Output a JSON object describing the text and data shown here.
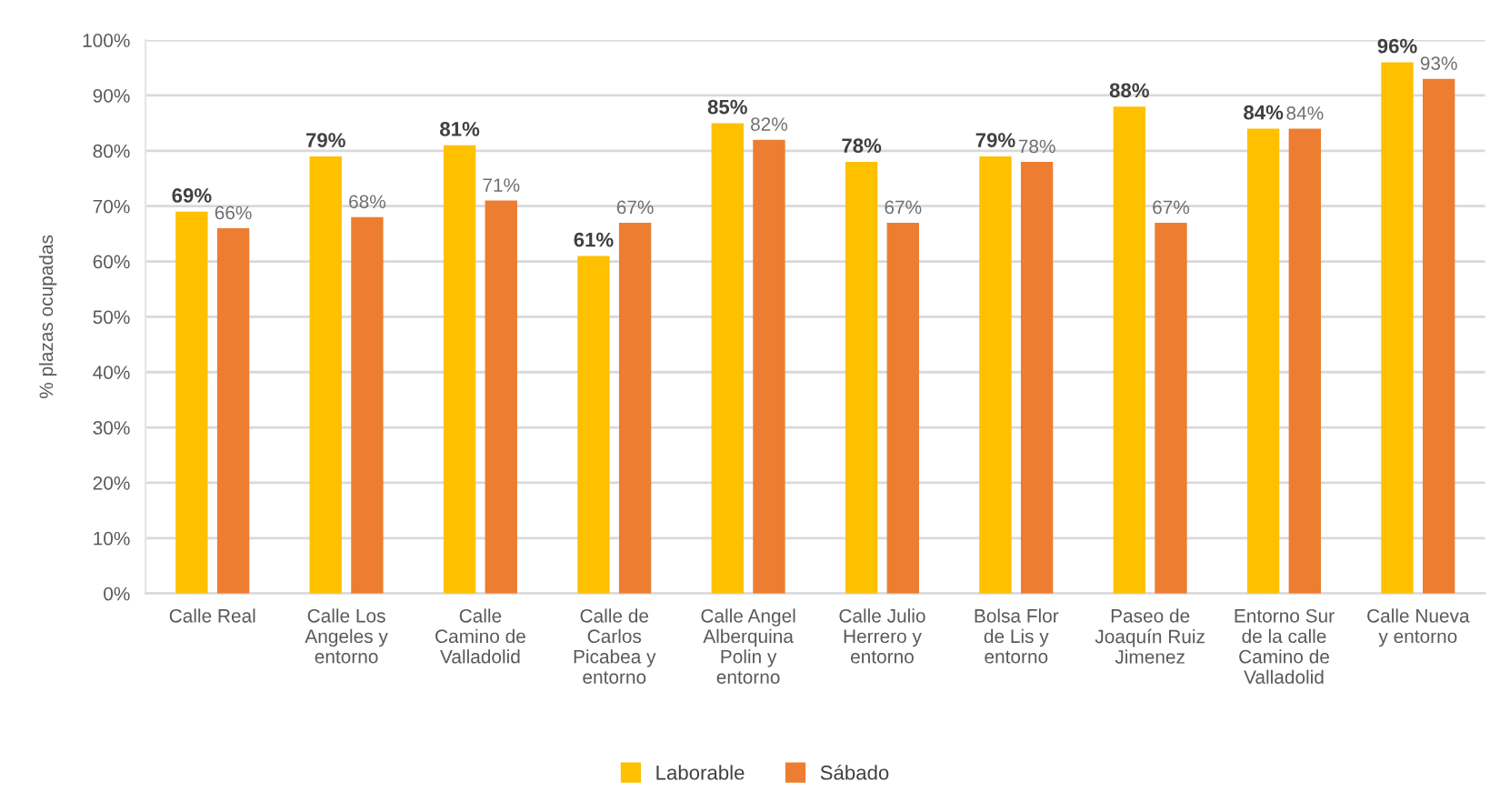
{
  "chart_data": {
    "type": "bar",
    "ylabel": "% plazas ocupadas",
    "categories": [
      "Calle Real",
      "Calle Los\nAngeles y\nentorno",
      "Calle\nCamino de\nValladolid",
      "Calle de\nCarlos\nPicabea y\nentorno",
      "Calle Angel\nAlberquina\nPolin y\nentorno",
      "Calle Julio\nHerrero y\nentorno",
      "Bolsa Flor\nde Lis y\nentorno",
      "Paseo de\nJoaquín Ruiz\nJimenez",
      "Entorno Sur\nde la calle\nCamino de\nValladolid",
      "Calle Nueva\ny entorno"
    ],
    "series": [
      {
        "name": "Laborable",
        "color": "#ffc000",
        "values": [
          69,
          79,
          81,
          61,
          85,
          78,
          79,
          88,
          84,
          96
        ],
        "value_labels": [
          "69%",
          "79%",
          "81%",
          "61%",
          "85%",
          "78%",
          "79%",
          "88%",
          "84%",
          "96%"
        ]
      },
      {
        "name": "Sábado",
        "color": "#ed7d31",
        "values": [
          66,
          68,
          71,
          67,
          82,
          67,
          78,
          67,
          84,
          93
        ],
        "value_labels": [
          "66%",
          "68%",
          "71%",
          "67%",
          "82%",
          "67%",
          "78%",
          "67%",
          "84%",
          "93%"
        ]
      }
    ],
    "ylim": [
      0,
      100
    ],
    "yticks": [
      {
        "value": 0,
        "label": "0%"
      },
      {
        "value": 10,
        "label": "10%"
      },
      {
        "value": 20,
        "label": "20%"
      },
      {
        "value": 30,
        "label": "30%"
      },
      {
        "value": 40,
        "label": "40%"
      },
      {
        "value": 50,
        "label": "50%"
      },
      {
        "value": 60,
        "label": "60%"
      },
      {
        "value": 70,
        "label": "70%"
      },
      {
        "value": 80,
        "label": "80%"
      },
      {
        "value": 90,
        "label": "90%"
      },
      {
        "value": 100,
        "label": "100%"
      }
    ],
    "grid": "y",
    "legend": "bottom"
  }
}
